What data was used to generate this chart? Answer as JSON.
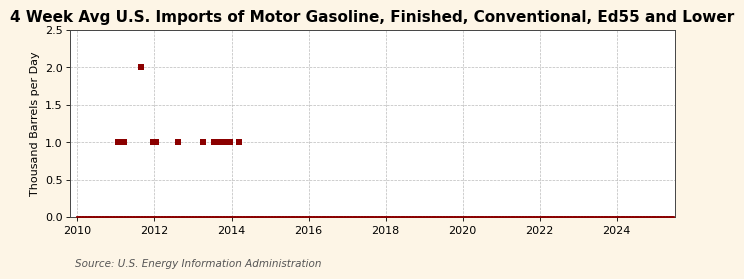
{
  "title": "4 Week Avg U.S. Imports of Motor Gasoline, Finished, Conventional, Ed55 and Lower",
  "ylabel": "Thousand Barrels per Day",
  "source": "Source: U.S. Energy Information Administration",
  "background_color": "#fdf5e6",
  "plot_bg_color": "#ffffff",
  "line_color": "#8b0000",
  "marker_color": "#8b0000",
  "xlim": [
    2009.8,
    2025.5
  ],
  "ylim": [
    0.0,
    2.5
  ],
  "yticks": [
    0.0,
    0.5,
    1.0,
    1.5,
    2.0,
    2.5
  ],
  "xticks": [
    2010,
    2012,
    2014,
    2016,
    2018,
    2020,
    2022,
    2024
  ],
  "title_fontsize": 11,
  "label_fontsize": 8,
  "tick_fontsize": 8,
  "source_fontsize": 7.5,
  "spike_points": [
    [
      2011.05,
      1
    ],
    [
      2011.15,
      1
    ],
    [
      2011.2,
      1
    ],
    [
      2011.65,
      2
    ],
    [
      2011.95,
      1
    ],
    [
      2012.05,
      1
    ],
    [
      2012.6,
      1
    ],
    [
      2013.25,
      1
    ],
    [
      2013.55,
      1
    ],
    [
      2013.6,
      1
    ],
    [
      2013.65,
      1
    ],
    [
      2013.7,
      1
    ],
    [
      2013.75,
      1
    ],
    [
      2013.8,
      1
    ],
    [
      2013.95,
      1
    ],
    [
      2014.2,
      1
    ]
  ]
}
